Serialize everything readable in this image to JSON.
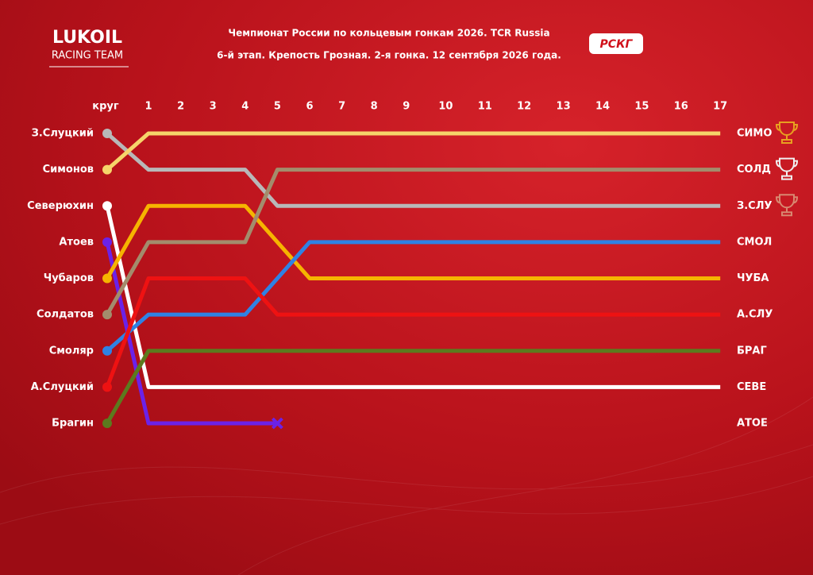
{
  "brand": {
    "logo": "LUKOIL",
    "team": "RACING TEAM",
    "series_logo": "РСКГ"
  },
  "chart_data": {
    "type": "bump",
    "title": "Чемпионат России по кольцевым гонкам 2026. TCR Russia",
    "subtitle": "6-й этап. Крепость Грозная. 2-я гонка. 12 сентября 2026 года.",
    "x_label": "круг",
    "categories": [
      null,
      "1",
      "2",
      "3",
      "4",
      "5",
      "6",
      "7",
      "8",
      "9",
      "10",
      "11",
      "12",
      "13",
      "14",
      "15",
      "16",
      "17"
    ],
    "ylim": [
      1,
      9
    ],
    "series": [
      {
        "name": "З.Слуцкий",
        "end_label": "З.СЛУ",
        "color": "#b8b8b8",
        "values": [
          1,
          2,
          2,
          2,
          2,
          3,
          3,
          3,
          3,
          3,
          3,
          3,
          3,
          3,
          3,
          3,
          3,
          3
        ]
      },
      {
        "name": "Симонов",
        "end_label": "СИМО",
        "color": "#f6d46a",
        "values": [
          2,
          1,
          1,
          1,
          1,
          1,
          1,
          1,
          1,
          1,
          1,
          1,
          1,
          1,
          1,
          1,
          1,
          1
        ]
      },
      {
        "name": "Северюхин",
        "end_label": "СЕВЕ",
        "color": "#ffffff",
        "values": [
          3,
          8,
          8,
          8,
          8,
          8,
          8,
          8,
          8,
          8,
          8,
          8,
          8,
          8,
          8,
          8,
          8,
          8
        ]
      },
      {
        "name": "Атоев",
        "end_label": "АТОЕ",
        "color": "#6b22e8",
        "values": [
          4,
          9,
          9,
          9,
          9,
          9,
          null,
          null,
          null,
          null,
          null,
          null,
          null,
          null,
          null,
          null,
          null,
          null
        ]
      },
      {
        "name": "Чубаров",
        "end_label": "ЧУБА",
        "color": "#f6b400",
        "values": [
          5,
          3,
          3,
          3,
          3,
          4,
          5,
          5,
          5,
          5,
          5,
          5,
          5,
          5,
          5,
          5,
          5,
          5
        ]
      },
      {
        "name": "Солдатов",
        "end_label": "СОЛД",
        "color": "#a38c6c",
        "values": [
          6,
          4,
          4,
          4,
          4,
          2,
          2,
          2,
          2,
          2,
          2,
          2,
          2,
          2,
          2,
          2,
          2,
          2
        ]
      },
      {
        "name": "Смоляр",
        "end_label": "СМОЛ",
        "color": "#2f82e4",
        "values": [
          7,
          6,
          6,
          6,
          6,
          5,
          4,
          4,
          4,
          4,
          4,
          4,
          4,
          4,
          4,
          4,
          4,
          4
        ]
      },
      {
        "name": "А.Слуцкий",
        "end_label": "А.СЛУ",
        "color": "#ee1212",
        "values": [
          8,
          5,
          5,
          5,
          5,
          6,
          6,
          6,
          6,
          6,
          6,
          6,
          6,
          6,
          6,
          6,
          6,
          6
        ]
      },
      {
        "name": "Брагин",
        "end_label": "БРАГ",
        "color": "#5c7a1e",
        "values": [
          9,
          7,
          7,
          7,
          7,
          7,
          7,
          7,
          7,
          7,
          7,
          7,
          7,
          7,
          7,
          7,
          7,
          7
        ]
      }
    ]
  }
}
